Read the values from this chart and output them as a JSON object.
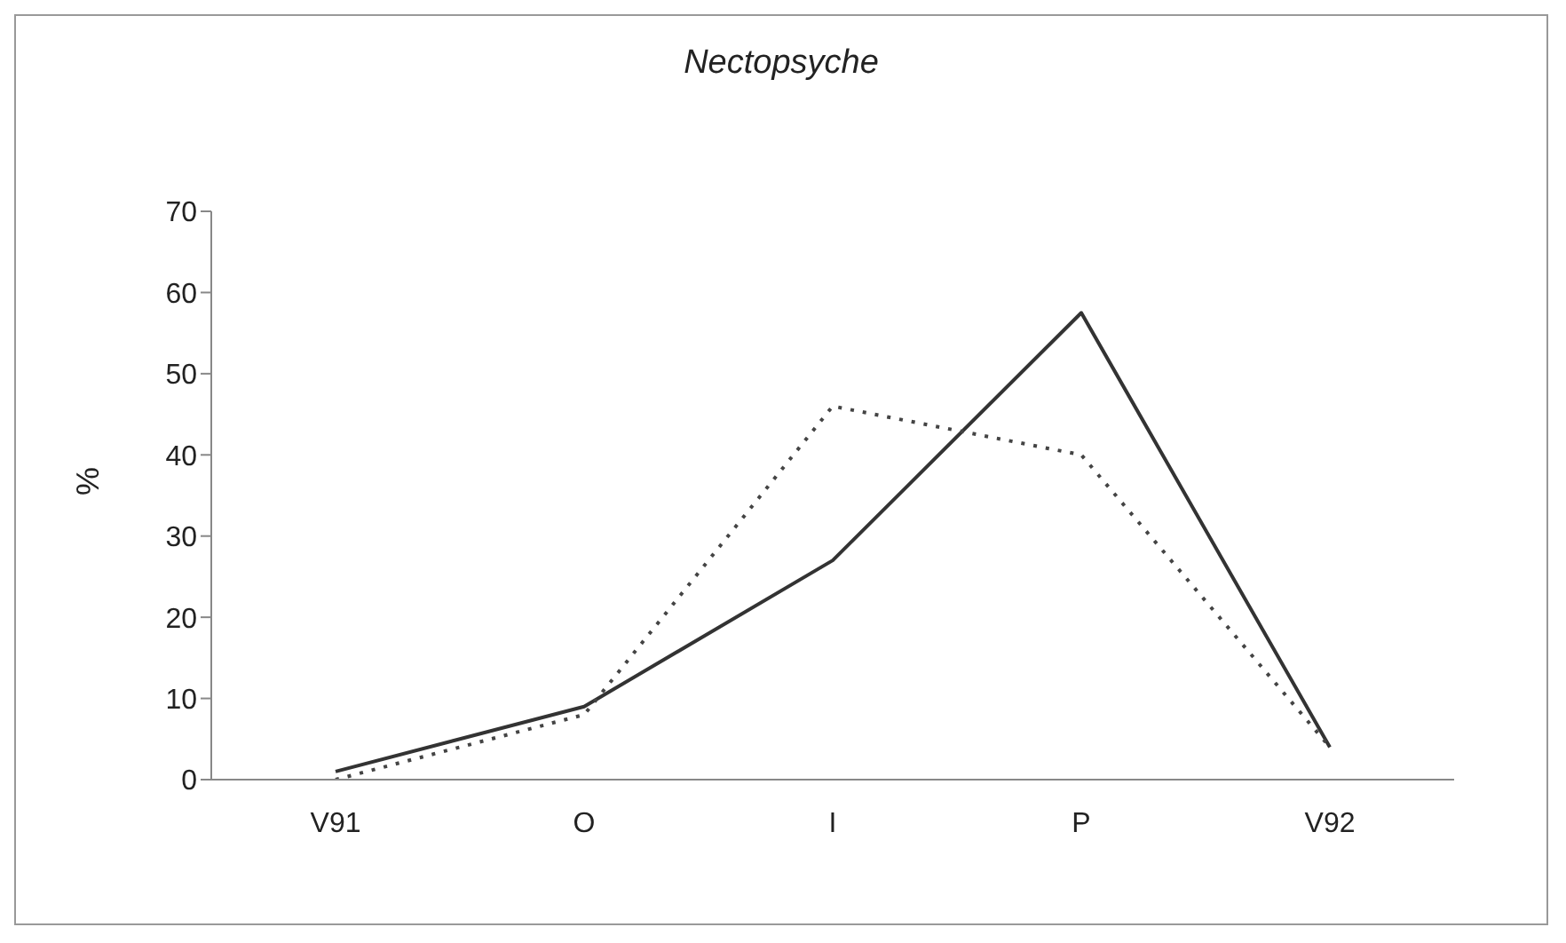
{
  "chart_data": {
    "type": "line",
    "title": "Nectopsyche",
    "ylabel": "%",
    "categories": [
      "V91",
      "O",
      "I",
      "P",
      "V92"
    ],
    "series": [
      {
        "color": "#333333",
        "line_style": "solid",
        "values": [
          1,
          9,
          27,
          57.5,
          4
        ]
      },
      {
        "color": "#444444",
        "line_style": "dotted",
        "values": [
          0,
          8,
          46,
          40,
          4
        ]
      }
    ],
    "ylim": [
      0,
      70
    ],
    "yticks": [
      0,
      10,
      20,
      30,
      40,
      50,
      60,
      70
    ],
    "grid": false,
    "legend": false,
    "marker": "none"
  }
}
